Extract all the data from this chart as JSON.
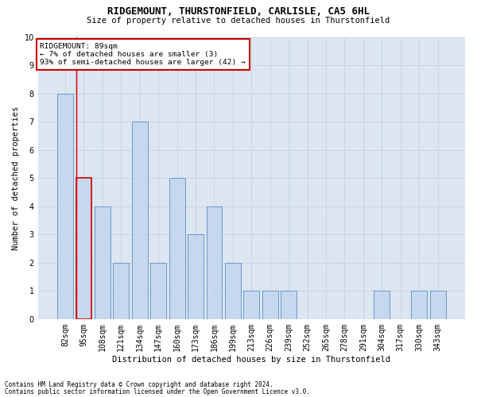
{
  "title1": "RIDGEMOUNT, THURSTONFIELD, CARLISLE, CA5 6HL",
  "title2": "Size of property relative to detached houses in Thurstonfield",
  "xlabel": "Distribution of detached houses by size in Thurstonfield",
  "ylabel": "Number of detached properties",
  "footnote1": "Contains HM Land Registry data © Crown copyright and database right 2024.",
  "footnote2": "Contains public sector information licensed under the Open Government Licence v3.0.",
  "annotation_title": "RIDGEMOUNT: 89sqm",
  "annotation_line1": "← 7% of detached houses are smaller (3)",
  "annotation_line2": "93% of semi-detached houses are larger (42) →",
  "categories": [
    "82sqm",
    "95sqm",
    "108sqm",
    "121sqm",
    "134sqm",
    "147sqm",
    "160sqm",
    "173sqm",
    "186sqm",
    "199sqm",
    "213sqm",
    "226sqm",
    "239sqm",
    "252sqm",
    "265sqm",
    "278sqm",
    "291sqm",
    "304sqm",
    "317sqm",
    "330sqm",
    "343sqm"
  ],
  "values": [
    8,
    5,
    4,
    2,
    7,
    2,
    5,
    3,
    4,
    2,
    1,
    1,
    1,
    0,
    0,
    0,
    0,
    1,
    0,
    1,
    1
  ],
  "highlight_index": 1,
  "bar_color": "#c5d8ed",
  "bar_edge_color": "#5b8ec4",
  "highlight_bar_edge_color": "#cc0000",
  "annotation_box_edge_color": "#cc0000",
  "grid_color": "#c8d4e4",
  "background_color": "#dce6f1",
  "ylim": [
    0,
    10
  ],
  "yticks": [
    0,
    1,
    2,
    3,
    4,
    5,
    6,
    7,
    8,
    9,
    10
  ]
}
